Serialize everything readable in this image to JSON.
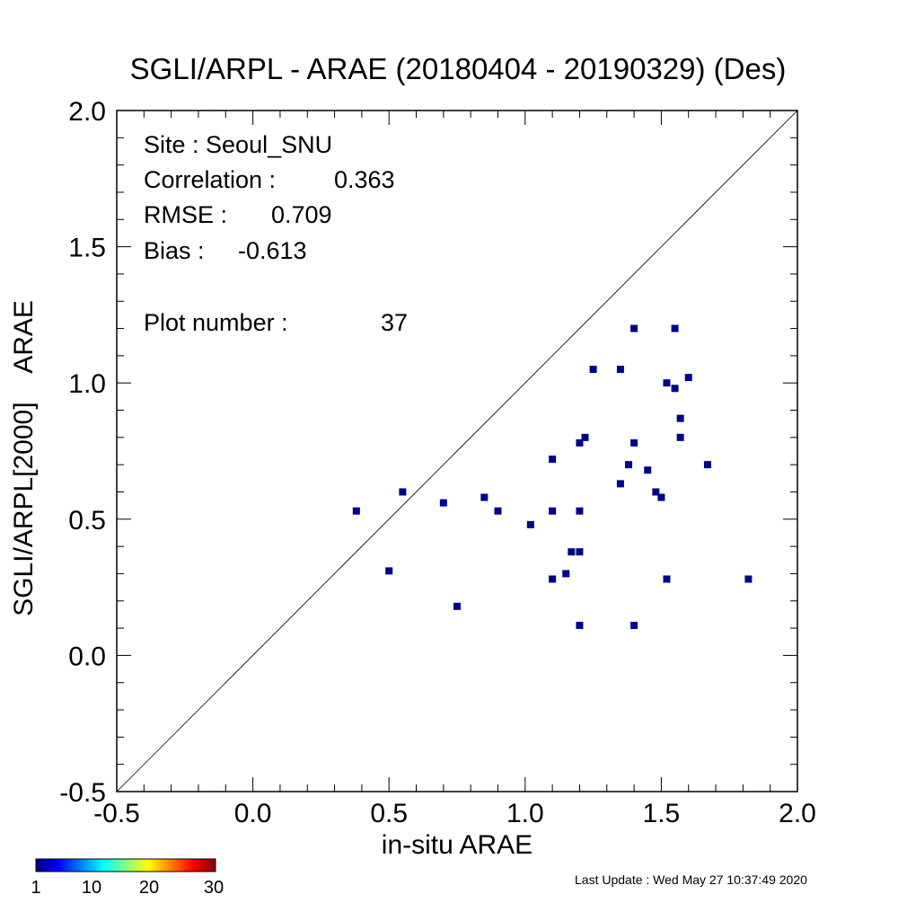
{
  "chart_data": {
    "type": "scatter",
    "title": "SGLI/ARPL - ARAE (20180404 - 20190329) (Des)",
    "xlabel": "in-situ ARAE",
    "ylabel": "SGLI/ARPL[2000]    ARAE",
    "xlim": [
      -0.5,
      2.0
    ],
    "ylim": [
      -0.5,
      2.0
    ],
    "x_ticks": [
      "-0.5",
      "0.0",
      "0.5",
      "1.0",
      "1.5",
      "2.0"
    ],
    "y_ticks": [
      "-0.5",
      "0.0",
      "0.5",
      "1.0",
      "1.5",
      "2.0"
    ],
    "grid": false,
    "reference_line": "1:1",
    "marker_color": "#00008b",
    "points": [
      [
        0.38,
        0.53
      ],
      [
        0.5,
        0.31
      ],
      [
        0.55,
        0.6
      ],
      [
        0.7,
        0.56
      ],
      [
        0.75,
        0.18
      ],
      [
        0.85,
        0.58
      ],
      [
        0.9,
        0.53
      ],
      [
        1.02,
        0.48
      ],
      [
        1.1,
        0.72
      ],
      [
        1.1,
        0.53
      ],
      [
        1.1,
        0.28
      ],
      [
        1.15,
        0.3
      ],
      [
        1.17,
        0.38
      ],
      [
        1.2,
        0.38
      ],
      [
        1.2,
        0.78
      ],
      [
        1.2,
        0.53
      ],
      [
        1.2,
        0.11
      ],
      [
        1.22,
        0.8
      ],
      [
        1.25,
        1.05
      ],
      [
        1.35,
        1.05
      ],
      [
        1.35,
        0.63
      ],
      [
        1.38,
        0.7
      ],
      [
        1.4,
        1.2
      ],
      [
        1.4,
        0.78
      ],
      [
        1.4,
        0.11
      ],
      [
        1.45,
        0.68
      ],
      [
        1.48,
        0.6
      ],
      [
        1.5,
        0.58
      ],
      [
        1.52,
        1.0
      ],
      [
        1.52,
        0.28
      ],
      [
        1.55,
        1.2
      ],
      [
        1.55,
        0.98
      ],
      [
        1.57,
        0.87
      ],
      [
        1.57,
        0.8
      ],
      [
        1.6,
        1.02
      ],
      [
        1.67,
        0.7
      ],
      [
        1.82,
        0.28
      ]
    ]
  },
  "stats": {
    "site": "Site : Seoul_SNU",
    "correlation_label": "Correlation :",
    "correlation_value": "0.363",
    "rmse_label": "RMSE :",
    "rmse_value": "0.709",
    "bias_label": "Bias :",
    "bias_value": "-0.613",
    "plot_number_label": "Plot number :",
    "plot_number_value": "37"
  },
  "colorbar": {
    "labels": [
      "1",
      "10",
      "20",
      "30"
    ],
    "colors": [
      "#00007f",
      "#0000ff",
      "#007fff",
      "#00ffff",
      "#7fff7f",
      "#ffff00",
      "#ff7f00",
      "#ff0000",
      "#7f0000"
    ]
  },
  "footer": {
    "last_update": "Last Update : Wed May 27 10:37:49 2020"
  }
}
